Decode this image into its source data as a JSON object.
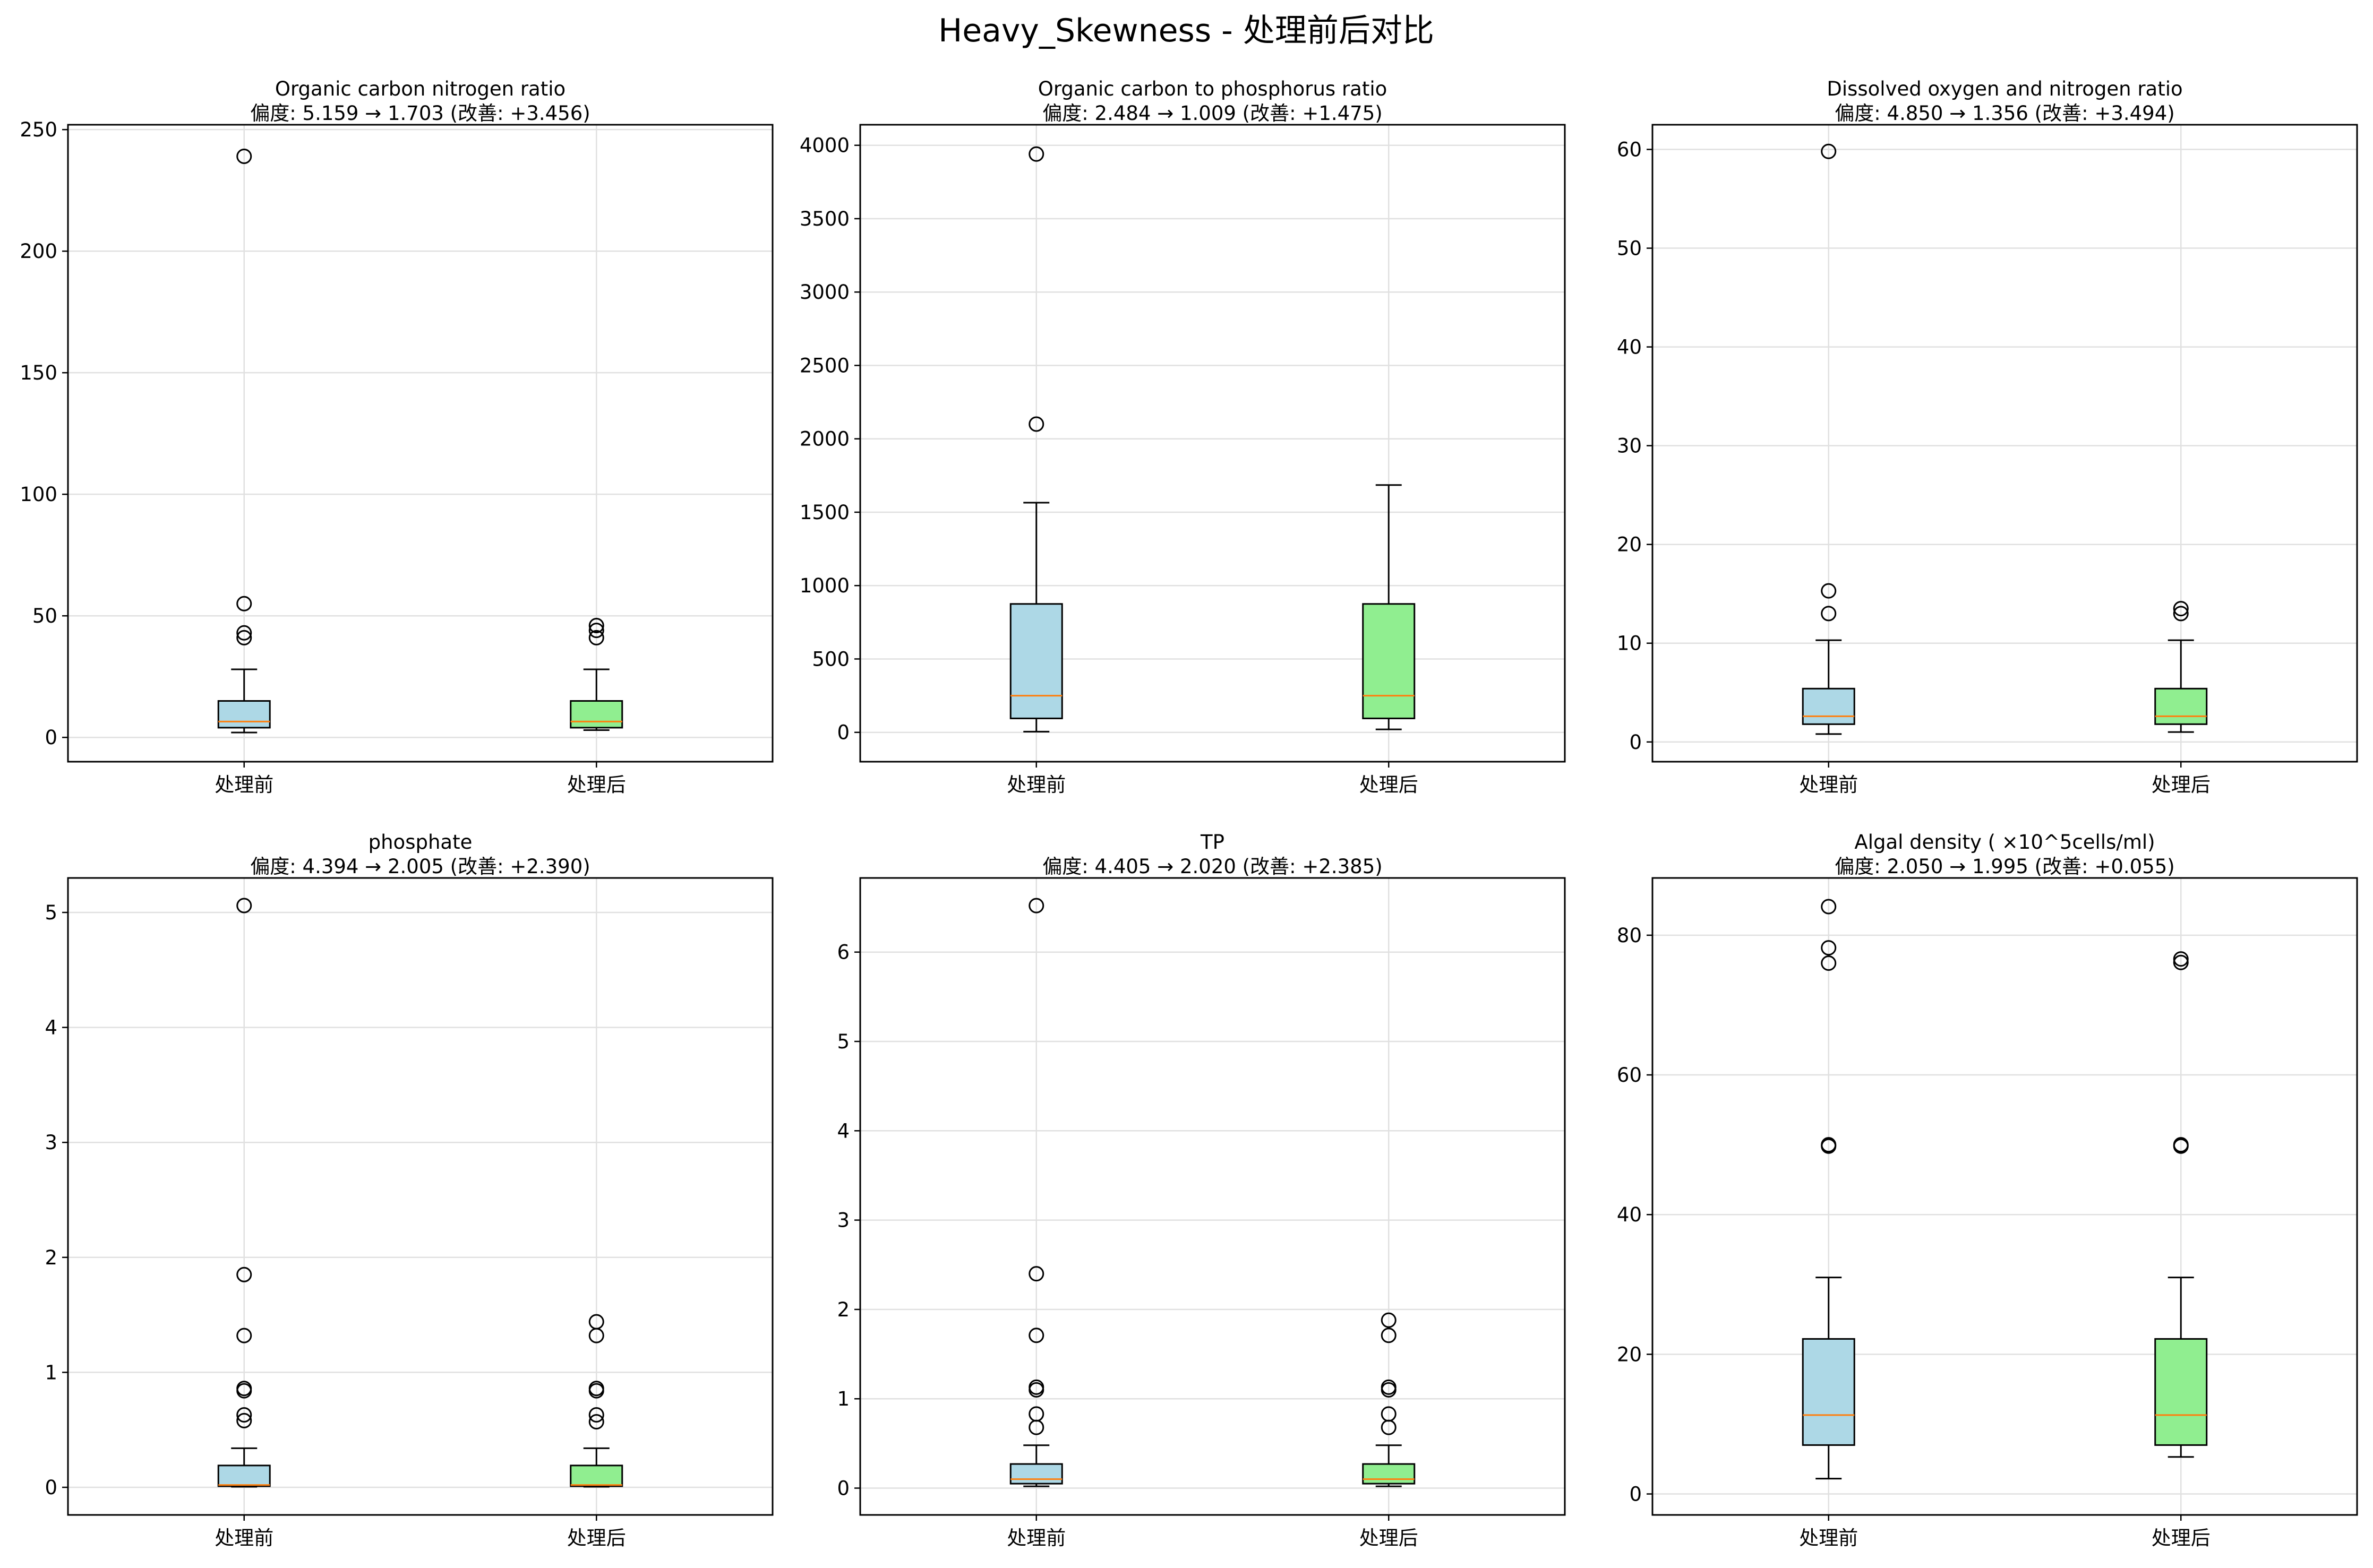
{
  "figure": {
    "title": "Heavy_Skewness - 处理前后对比",
    "colors": {
      "before": "#add8e6",
      "after": "#90ee90",
      "median": "#ff7f0e",
      "grid": "#e0e0e0"
    }
  },
  "chart_data": [
    {
      "type": "box",
      "title": "Organic carbon nitrogen ratio",
      "subtitle": "偏度: 5.159 → 1.703 (改善: +3.456)",
      "categories": [
        "处理前",
        "处理后"
      ],
      "ylim": [
        -10,
        252
      ],
      "yticks": [
        0,
        50,
        100,
        150,
        200,
        250
      ],
      "grid": true,
      "boxes": [
        {
          "name": "处理前",
          "whislo": 2,
          "q1": 4,
          "med": 6.5,
          "q3": 15,
          "whishi": 28,
          "fliers": [
            239,
            55,
            43,
            41
          ]
        },
        {
          "name": "处理后",
          "whislo": 3,
          "q1": 4,
          "med": 6.5,
          "q3": 15,
          "whishi": 28,
          "fliers": [
            46,
            44,
            41
          ]
        }
      ]
    },
    {
      "type": "box",
      "title": "Organic carbon to phosphorus ratio",
      "subtitle": "偏度: 2.484 → 1.009 (改善: +1.475)",
      "categories": [
        "处理前",
        "处理后"
      ],
      "ylim": [
        -200,
        4140
      ],
      "yticks": [
        0,
        500,
        1000,
        1500,
        2000,
        2500,
        3000,
        3500,
        4000
      ],
      "grid": true,
      "boxes": [
        {
          "name": "处理前",
          "whislo": 5,
          "q1": 95,
          "med": 250,
          "q3": 875,
          "whishi": 1565,
          "fliers": [
            3940,
            2100
          ]
        },
        {
          "name": "处理后",
          "whislo": 20,
          "q1": 95,
          "med": 250,
          "q3": 875,
          "whishi": 1685,
          "fliers": []
        }
      ]
    },
    {
      "type": "box",
      "title": "Dissolved oxygen and nitrogen ratio",
      "subtitle": "偏度: 4.850 → 1.356 (改善: +3.494)",
      "categories": [
        "处理前",
        "处理后"
      ],
      "ylim": [
        -2,
        62.5
      ],
      "yticks": [
        0,
        10,
        20,
        30,
        40,
        50,
        60
      ],
      "grid": true,
      "boxes": [
        {
          "name": "处理前",
          "whislo": 0.8,
          "q1": 1.8,
          "med": 2.6,
          "q3": 5.4,
          "whishi": 10.3,
          "fliers": [
            59.8,
            15.3,
            13
          ]
        },
        {
          "name": "处理后",
          "whislo": 1,
          "q1": 1.8,
          "med": 2.6,
          "q3": 5.4,
          "whishi": 10.3,
          "fliers": [
            13.5,
            13
          ]
        }
      ]
    },
    {
      "type": "box",
      "title": "phosphate",
      "subtitle": "偏度: 4.394 → 2.005 (改善: +2.390)",
      "categories": [
        "处理前",
        "处理后"
      ],
      "ylim": [
        -0.24,
        5.3
      ],
      "yticks": [
        0,
        1,
        2,
        3,
        4,
        5
      ],
      "grid": true,
      "boxes": [
        {
          "name": "处理前",
          "whislo": 0.005,
          "q1": 0.01,
          "med": 0.02,
          "q3": 0.19,
          "whishi": 0.34,
          "fliers": [
            5.06,
            1.85,
            1.32,
            0.86,
            0.84,
            0.63,
            0.58
          ]
        },
        {
          "name": "处理后",
          "whislo": 0.005,
          "q1": 0.01,
          "med": 0.02,
          "q3": 0.19,
          "whishi": 0.34,
          "fliers": [
            1.44,
            1.32,
            0.86,
            0.84,
            0.63,
            0.57
          ]
        }
      ]
    },
    {
      "type": "box",
      "title": "TP",
      "subtitle": "偏度: 4.405 → 2.020 (改善: +2.385)",
      "categories": [
        "处理前",
        "处理后"
      ],
      "ylim": [
        -0.3,
        6.83
      ],
      "yticks": [
        0,
        1,
        2,
        3,
        4,
        5,
        6
      ],
      "grid": true,
      "boxes": [
        {
          "name": "处理前",
          "whislo": 0.02,
          "q1": 0.05,
          "med": 0.1,
          "q3": 0.27,
          "whishi": 0.48,
          "fliers": [
            6.52,
            2.4,
            1.71,
            1.13,
            1.1,
            0.83,
            0.68
          ]
        },
        {
          "name": "处理后",
          "whislo": 0.02,
          "q1": 0.05,
          "med": 0.1,
          "q3": 0.27,
          "whishi": 0.48,
          "fliers": [
            1.88,
            1.71,
            1.13,
            1.1,
            0.83,
            0.68
          ]
        }
      ]
    },
    {
      "type": "box",
      "title": "Algal density ( ×10^5cells/ml)",
      "subtitle": "偏度: 2.050 → 1.995 (改善: +0.055)",
      "categories": [
        "处理前",
        "处理后"
      ],
      "ylim": [
        -3,
        88.2
      ],
      "yticks": [
        0,
        20,
        40,
        60,
        80
      ],
      "grid": true,
      "boxes": [
        {
          "name": "处理前",
          "whislo": 2.2,
          "q1": 7,
          "med": 11.3,
          "q3": 22.2,
          "whishi": 31,
          "fliers": [
            84.1,
            78.2,
            76,
            50,
            49.8
          ]
        },
        {
          "name": "处理后",
          "whislo": 5.3,
          "q1": 7,
          "med": 11.3,
          "q3": 22.2,
          "whishi": 31,
          "fliers": [
            76.6,
            76.1,
            50,
            49.8
          ]
        }
      ]
    }
  ]
}
